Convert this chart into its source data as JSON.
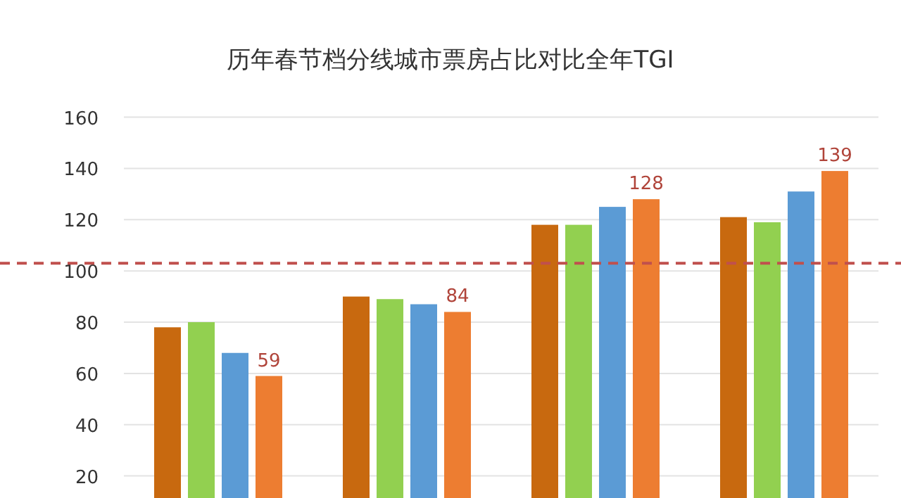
{
  "chart_data": {
    "type": "bar",
    "title": "历年春节档分线城市票房占比对比全年TGI",
    "categories": [
      null,
      null,
      null,
      null
    ],
    "series": [
      {
        "color": "#c8690f",
        "values": [
          78,
          90,
          118,
          121
        ]
      },
      {
        "color": "#92d050",
        "values": [
          80,
          89,
          118,
          119
        ]
      },
      {
        "color": "#5b9bd5",
        "values": [
          68,
          87,
          125,
          131
        ]
      },
      {
        "color": "#ed7d31",
        "values": [
          59,
          84,
          128,
          139
        ],
        "value_labels": [
          "59",
          "84",
          "128",
          "139"
        ]
      }
    ],
    "ylim": [
      10,
      160
    ],
    "yticks": [
      20,
      40,
      60,
      80,
      100,
      120,
      140,
      160
    ],
    "grid": "y",
    "tick_labels": "y",
    "ref_lines": [
      {
        "axis": "y",
        "value": 103,
        "color": "#c0504d",
        "line_style": "dashed"
      }
    ]
  }
}
